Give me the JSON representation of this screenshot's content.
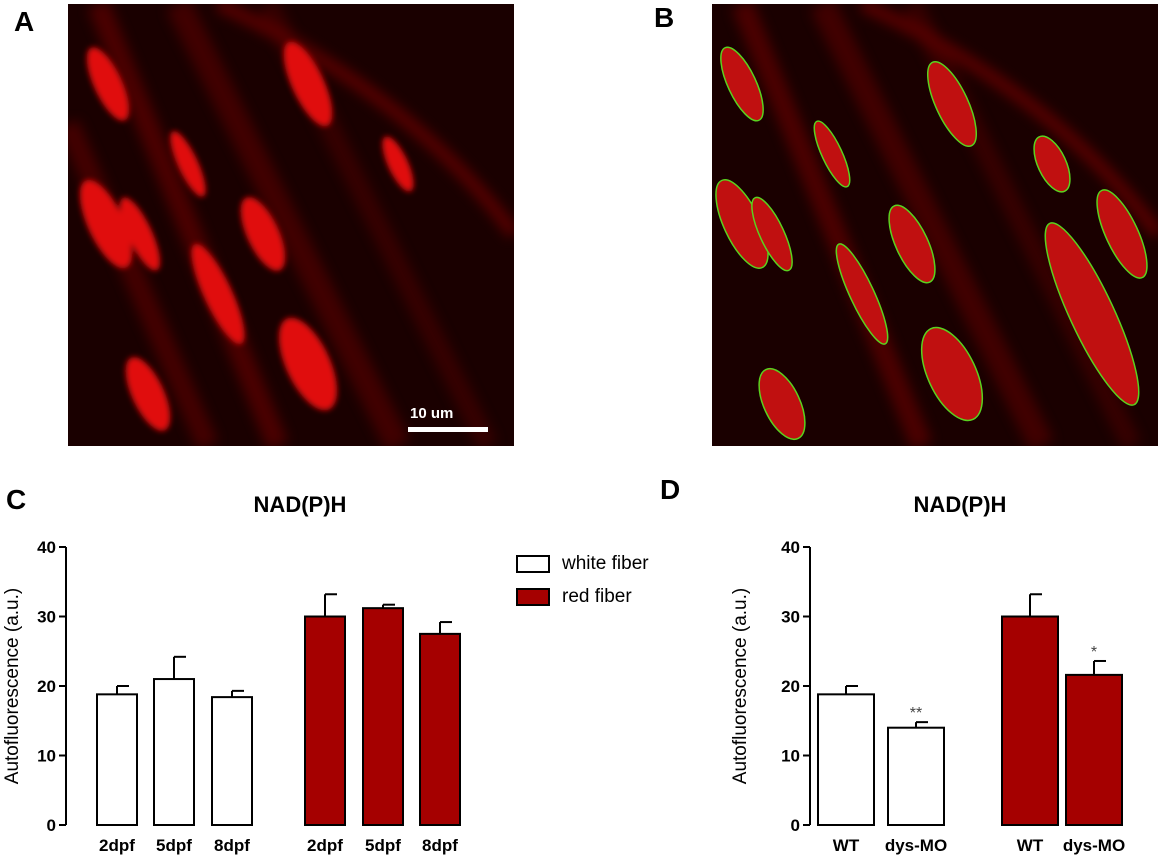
{
  "panels": {
    "a": {
      "letter": "A",
      "scale_bar_label": "10 um"
    },
    "b": {
      "letter": "B"
    },
    "c": {
      "letter": "C"
    },
    "d": {
      "letter": "D"
    }
  },
  "legend": {
    "white": "white fiber",
    "red": "red fiber"
  },
  "colors": {
    "white_fill": "#ffffff",
    "red_fill": "#a50000",
    "outline": "#000000",
    "contour": "#5ad21e"
  },
  "chart_data": [
    {
      "id": "C",
      "type": "bar",
      "title": "NAD(P)H",
      "xlabel": "",
      "ylabel": "Autofluorescence (a.u.)",
      "ylim": [
        0,
        40
      ],
      "yticks": [
        0,
        10,
        20,
        30,
        40
      ],
      "groups": [
        {
          "name": "white fiber",
          "color": "#ffffff",
          "categories": [
            "2dpf",
            "5dpf",
            "8dpf"
          ],
          "values": [
            18.8,
            21.0,
            18.4
          ],
          "errors": [
            1.2,
            3.2,
            0.9
          ]
        },
        {
          "name": "red fiber",
          "color": "#a50000",
          "categories": [
            "2dpf",
            "5dpf",
            "8dpf"
          ],
          "values": [
            30.0,
            31.2,
            27.5
          ],
          "errors": [
            3.2,
            0.5,
            1.7
          ]
        }
      ],
      "legend_position": "top-right"
    },
    {
      "id": "D",
      "type": "bar",
      "title": "NAD(P)H",
      "xlabel": "",
      "ylabel": "Autofluorescence (a.u.)",
      "ylim": [
        0,
        40
      ],
      "yticks": [
        0,
        10,
        20,
        30,
        40
      ],
      "groups": [
        {
          "name": "white fiber",
          "color": "#ffffff",
          "categories": [
            "WT",
            "dys-MO"
          ],
          "values": [
            18.8,
            14.0
          ],
          "errors": [
            1.2,
            0.8
          ],
          "annotations": [
            "",
            "**"
          ]
        },
        {
          "name": "red fiber",
          "color": "#a50000",
          "categories": [
            "WT",
            "dys-MO"
          ],
          "values": [
            30.0,
            21.6
          ],
          "errors": [
            3.2,
            2.0
          ],
          "annotations": [
            "",
            "*"
          ]
        }
      ]
    }
  ]
}
